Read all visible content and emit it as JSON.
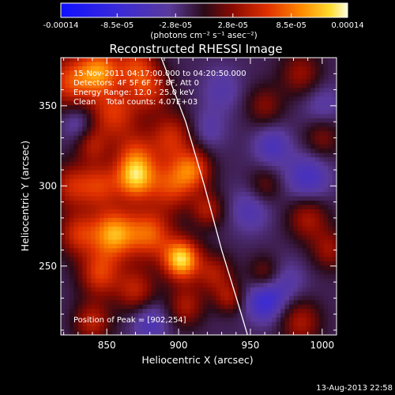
{
  "chart_data": {
    "type": "heatmap",
    "title": "Reconstructed RHESSI Image",
    "xlabel": "Heliocentric X (arcsec)",
    "ylabel": "Heliocentric Y (arcsec)",
    "xlim": [
      818,
      1010
    ],
    "ylim": [
      207,
      380
    ],
    "x_ticks": [
      "850",
      "900",
      "950",
      "1000"
    ],
    "x_tick_values": [
      850,
      900,
      950,
      1000
    ],
    "y_ticks": [
      "250",
      "300",
      "350"
    ],
    "y_tick_values": [
      250,
      300,
      350
    ],
    "colorbar": {
      "ticks": [
        "-0.00014",
        "-8.5e-05",
        "-2.8e-05",
        "2.8e-05",
        "8.5e-05",
        "0.00014"
      ],
      "tick_values": [
        -0.00014,
        -8.5e-05,
        -2.8e-05,
        2.8e-05,
        8.5e-05,
        0.00014
      ],
      "range": [
        -0.00014,
        0.00014
      ],
      "units_label": "(photons cm⁻² s⁻¹ asec⁻²)"
    },
    "info_lines": [
      "15-Nov-2011 04:17:00.000 to 04:20:50.000",
      "Detectors: 4F 5F 6F 7F 8F, Att 0",
      "Energy Range: 12.0 - 25.0 keV",
      "Clean    Total counts: 4.07E+03"
    ],
    "peak_label": "Position of Peak = [902,254]",
    "peak": [
      902,
      254
    ],
    "limb_curve": [
      [
        888,
        380
      ],
      [
        905,
        340
      ],
      [
        918,
        300
      ],
      [
        930,
        260
      ],
      [
        942,
        225
      ],
      [
        948,
        207
      ]
    ],
    "blobs": [
      [
        825,
        365,
        0.6,
        12
      ],
      [
        845,
        372,
        0.7,
        10
      ],
      [
        870,
        375,
        0.5,
        10
      ],
      [
        855,
        345,
        0.55,
        12
      ],
      [
        880,
        360,
        0.45,
        10
      ],
      [
        895,
        330,
        0.5,
        11
      ],
      [
        870,
        320,
        0.4,
        10
      ],
      [
        840,
        325,
        0.35,
        8
      ],
      [
        825,
        300,
        0.45,
        10
      ],
      [
        845,
        300,
        0.5,
        10
      ],
      [
        870,
        305,
        0.85,
        10
      ],
      [
        895,
        300,
        0.55,
        11
      ],
      [
        910,
        310,
        0.6,
        9
      ],
      [
        920,
        285,
        0.4,
        8
      ],
      [
        855,
        270,
        0.85,
        11
      ],
      [
        880,
        270,
        0.65,
        11
      ],
      [
        830,
        270,
        0.5,
        10
      ],
      [
        845,
        245,
        0.55,
        10
      ],
      [
        870,
        235,
        0.45,
        10
      ],
      [
        902,
        254,
        1.0,
        9
      ],
      [
        925,
        245,
        0.4,
        9
      ],
      [
        935,
        230,
        0.35,
        7
      ],
      [
        840,
        215,
        0.45,
        9
      ],
      [
        905,
        225,
        0.4,
        9
      ],
      [
        960,
        350,
        0.3,
        9
      ],
      [
        985,
        370,
        0.35,
        10
      ],
      [
        1000,
        330,
        0.3,
        9
      ],
      [
        960,
        300,
        0.25,
        8
      ],
      [
        990,
        280,
        0.4,
        10
      ],
      [
        1005,
        260,
        0.35,
        9
      ],
      [
        960,
        245,
        0.3,
        8
      ],
      [
        985,
        215,
        0.4,
        10
      ],
      [
        975,
        240,
        -0.2,
        10
      ],
      [
        960,
        228,
        -0.45,
        9
      ],
      [
        990,
        305,
        -0.35,
        11
      ],
      [
        950,
        285,
        -0.25,
        10
      ],
      [
        1000,
        350,
        -0.2,
        10
      ],
      [
        930,
        360,
        -0.2,
        10
      ],
      [
        830,
        340,
        -0.25,
        8
      ],
      [
        880,
        215,
        -0.3,
        9
      ],
      [
        920,
        335,
        -0.2,
        9
      ],
      [
        965,
        325,
        -0.3,
        9
      ]
    ]
  },
  "footer": {
    "timestamp": "13-Aug-2013 22:58"
  },
  "colors": {
    "background": "#000000",
    "text": "#ffffff",
    "limb": "#ffffff"
  }
}
